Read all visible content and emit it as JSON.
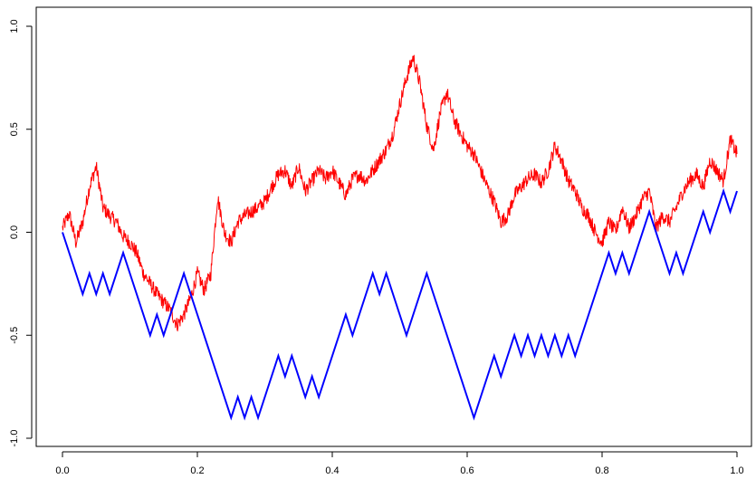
{
  "chart_data": {
    "type": "line",
    "title": "",
    "xlabel": "",
    "ylabel": "",
    "xlim": [
      0,
      1
    ],
    "ylim": [
      -1.05,
      1.05
    ],
    "grid": false,
    "legend": "none",
    "x_ticks": [
      {
        "value": 0.0,
        "label": "0.0"
      },
      {
        "value": 0.2,
        "label": "0.2"
      },
      {
        "value": 0.4,
        "label": "0.4"
      },
      {
        "value": 0.6,
        "label": "0.6"
      },
      {
        "value": 0.8,
        "label": "0.8"
      },
      {
        "value": 1.0,
        "label": "1.0"
      }
    ],
    "y_ticks": [
      {
        "value": -1.0,
        "label": "-1.0"
      },
      {
        "value": -0.5,
        "label": "-0.5"
      },
      {
        "value": 0.0,
        "label": "0.0"
      },
      {
        "value": 0.5,
        "label": "0.5"
      },
      {
        "value": 1.0,
        "label": "1.0"
      }
    ],
    "series": [
      {
        "color": "#0000ff",
        "line_width": 2,
        "points": [
          [
            0.0,
            0.0
          ],
          [
            0.01,
            -0.1
          ],
          [
            0.02,
            -0.2
          ],
          [
            0.03,
            -0.3
          ],
          [
            0.04,
            -0.2
          ],
          [
            0.05,
            -0.3
          ],
          [
            0.06,
            -0.2
          ],
          [
            0.07,
            -0.3
          ],
          [
            0.08,
            -0.2
          ],
          [
            0.09,
            -0.1
          ],
          [
            0.1,
            -0.2
          ],
          [
            0.11,
            -0.3
          ],
          [
            0.12,
            -0.4
          ],
          [
            0.13,
            -0.5
          ],
          [
            0.14,
            -0.4
          ],
          [
            0.15,
            -0.5
          ],
          [
            0.16,
            -0.4
          ],
          [
            0.17,
            -0.3
          ],
          [
            0.18,
            -0.2
          ],
          [
            0.19,
            -0.3
          ],
          [
            0.2,
            -0.4
          ],
          [
            0.21,
            -0.5
          ],
          [
            0.22,
            -0.6
          ],
          [
            0.23,
            -0.7
          ],
          [
            0.24,
            -0.8
          ],
          [
            0.25,
            -0.9
          ],
          [
            0.26,
            -0.8
          ],
          [
            0.27,
            -0.9
          ],
          [
            0.28,
            -0.8
          ],
          [
            0.29,
            -0.9
          ],
          [
            0.3,
            -0.8
          ],
          [
            0.31,
            -0.7
          ],
          [
            0.32,
            -0.6
          ],
          [
            0.33,
            -0.7
          ],
          [
            0.34,
            -0.6
          ],
          [
            0.35,
            -0.7
          ],
          [
            0.36,
            -0.8
          ],
          [
            0.37,
            -0.7
          ],
          [
            0.38,
            -0.8
          ],
          [
            0.39,
            -0.7
          ],
          [
            0.4,
            -0.6
          ],
          [
            0.41,
            -0.5
          ],
          [
            0.42,
            -0.4
          ],
          [
            0.43,
            -0.5
          ],
          [
            0.44,
            -0.4
          ],
          [
            0.45,
            -0.3
          ],
          [
            0.46,
            -0.2
          ],
          [
            0.47,
            -0.3
          ],
          [
            0.48,
            -0.2
          ],
          [
            0.49,
            -0.3
          ],
          [
            0.5,
            -0.4
          ],
          [
            0.51,
            -0.5
          ],
          [
            0.52,
            -0.4
          ],
          [
            0.53,
            -0.3
          ],
          [
            0.54,
            -0.2
          ],
          [
            0.55,
            -0.3
          ],
          [
            0.56,
            -0.4
          ],
          [
            0.57,
            -0.5
          ],
          [
            0.58,
            -0.6
          ],
          [
            0.59,
            -0.7
          ],
          [
            0.6,
            -0.8
          ],
          [
            0.61,
            -0.9
          ],
          [
            0.62,
            -0.8
          ],
          [
            0.63,
            -0.7
          ],
          [
            0.64,
            -0.6
          ],
          [
            0.65,
            -0.7
          ],
          [
            0.66,
            -0.6
          ],
          [
            0.67,
            -0.5
          ],
          [
            0.68,
            -0.6
          ],
          [
            0.69,
            -0.5
          ],
          [
            0.7,
            -0.6
          ],
          [
            0.71,
            -0.5
          ],
          [
            0.72,
            -0.6
          ],
          [
            0.73,
            -0.5
          ],
          [
            0.74,
            -0.6
          ],
          [
            0.75,
            -0.5
          ],
          [
            0.76,
            -0.6
          ],
          [
            0.77,
            -0.5
          ],
          [
            0.78,
            -0.4
          ],
          [
            0.79,
            -0.3
          ],
          [
            0.8,
            -0.2
          ],
          [
            0.81,
            -0.1
          ],
          [
            0.82,
            -0.2
          ],
          [
            0.83,
            -0.1
          ],
          [
            0.84,
            -0.2
          ],
          [
            0.85,
            -0.1
          ],
          [
            0.86,
            0.0
          ],
          [
            0.87,
            0.1
          ],
          [
            0.88,
            0.0
          ],
          [
            0.89,
            -0.1
          ],
          [
            0.9,
            -0.2
          ],
          [
            0.91,
            -0.1
          ],
          [
            0.92,
            -0.2
          ],
          [
            0.93,
            -0.1
          ],
          [
            0.94,
            0.0
          ],
          [
            0.95,
            0.1
          ],
          [
            0.96,
            0.0
          ],
          [
            0.97,
            0.1
          ],
          [
            0.98,
            0.2
          ],
          [
            0.99,
            0.1
          ],
          [
            1.0,
            0.2
          ]
        ]
      },
      {
        "color": "#ff0000",
        "line_width": 1,
        "anchors": [
          [
            0.0,
            0.02
          ],
          [
            0.01,
            0.09
          ],
          [
            0.02,
            -0.05
          ],
          [
            0.03,
            0.05
          ],
          [
            0.04,
            0.22
          ],
          [
            0.05,
            0.32
          ],
          [
            0.06,
            0.12
          ],
          [
            0.07,
            0.08
          ],
          [
            0.08,
            0.05
          ],
          [
            0.09,
            -0.02
          ],
          [
            0.1,
            -0.05
          ],
          [
            0.11,
            -0.1
          ],
          [
            0.12,
            -0.2
          ],
          [
            0.13,
            -0.25
          ],
          [
            0.14,
            -0.3
          ],
          [
            0.15,
            -0.34
          ],
          [
            0.16,
            -0.38
          ],
          [
            0.17,
            -0.45
          ],
          [
            0.18,
            -0.4
          ],
          [
            0.19,
            -0.32
          ],
          [
            0.2,
            -0.2
          ],
          [
            0.21,
            -0.28
          ],
          [
            0.22,
            -0.2
          ],
          [
            0.23,
            0.17
          ],
          [
            0.24,
            0.0
          ],
          [
            0.25,
            -0.05
          ],
          [
            0.26,
            0.05
          ],
          [
            0.27,
            0.08
          ],
          [
            0.28,
            0.1
          ],
          [
            0.29,
            0.12
          ],
          [
            0.3,
            0.15
          ],
          [
            0.31,
            0.22
          ],
          [
            0.32,
            0.28
          ],
          [
            0.33,
            0.3
          ],
          [
            0.34,
            0.22
          ],
          [
            0.35,
            0.32
          ],
          [
            0.36,
            0.2
          ],
          [
            0.37,
            0.25
          ],
          [
            0.38,
            0.3
          ],
          [
            0.39,
            0.26
          ],
          [
            0.4,
            0.3
          ],
          [
            0.41,
            0.24
          ],
          [
            0.42,
            0.18
          ],
          [
            0.43,
            0.26
          ],
          [
            0.44,
            0.28
          ],
          [
            0.45,
            0.25
          ],
          [
            0.46,
            0.3
          ],
          [
            0.47,
            0.35
          ],
          [
            0.48,
            0.4
          ],
          [
            0.49,
            0.48
          ],
          [
            0.5,
            0.62
          ],
          [
            0.51,
            0.75
          ],
          [
            0.52,
            0.85
          ],
          [
            0.53,
            0.72
          ],
          [
            0.54,
            0.52
          ],
          [
            0.55,
            0.4
          ],
          [
            0.56,
            0.58
          ],
          [
            0.57,
            0.68
          ],
          [
            0.58,
            0.55
          ],
          [
            0.59,
            0.48
          ],
          [
            0.6,
            0.42
          ],
          [
            0.61,
            0.38
          ],
          [
            0.62,
            0.3
          ],
          [
            0.63,
            0.22
          ],
          [
            0.64,
            0.15
          ],
          [
            0.65,
            0.05
          ],
          [
            0.66,
            0.08
          ],
          [
            0.67,
            0.18
          ],
          [
            0.68,
            0.22
          ],
          [
            0.69,
            0.26
          ],
          [
            0.7,
            0.28
          ],
          [
            0.71,
            0.24
          ],
          [
            0.72,
            0.3
          ],
          [
            0.73,
            0.42
          ],
          [
            0.74,
            0.35
          ],
          [
            0.75,
            0.25
          ],
          [
            0.76,
            0.2
          ],
          [
            0.77,
            0.12
          ],
          [
            0.78,
            0.08
          ],
          [
            0.79,
            0.0
          ],
          [
            0.8,
            -0.05
          ],
          [
            0.81,
            0.05
          ],
          [
            0.82,
            0.0
          ],
          [
            0.83,
            0.12
          ],
          [
            0.84,
            0.02
          ],
          [
            0.85,
            0.08
          ],
          [
            0.86,
            0.16
          ],
          [
            0.87,
            0.2
          ],
          [
            0.88,
            0.02
          ],
          [
            0.89,
            0.08
          ],
          [
            0.9,
            0.05
          ],
          [
            0.91,
            0.12
          ],
          [
            0.92,
            0.2
          ],
          [
            0.93,
            0.25
          ],
          [
            0.94,
            0.28
          ],
          [
            0.95,
            0.22
          ],
          [
            0.96,
            0.35
          ],
          [
            0.97,
            0.3
          ],
          [
            0.98,
            0.25
          ],
          [
            0.99,
            0.45
          ],
          [
            1.0,
            0.38
          ]
        ]
      }
    ]
  }
}
